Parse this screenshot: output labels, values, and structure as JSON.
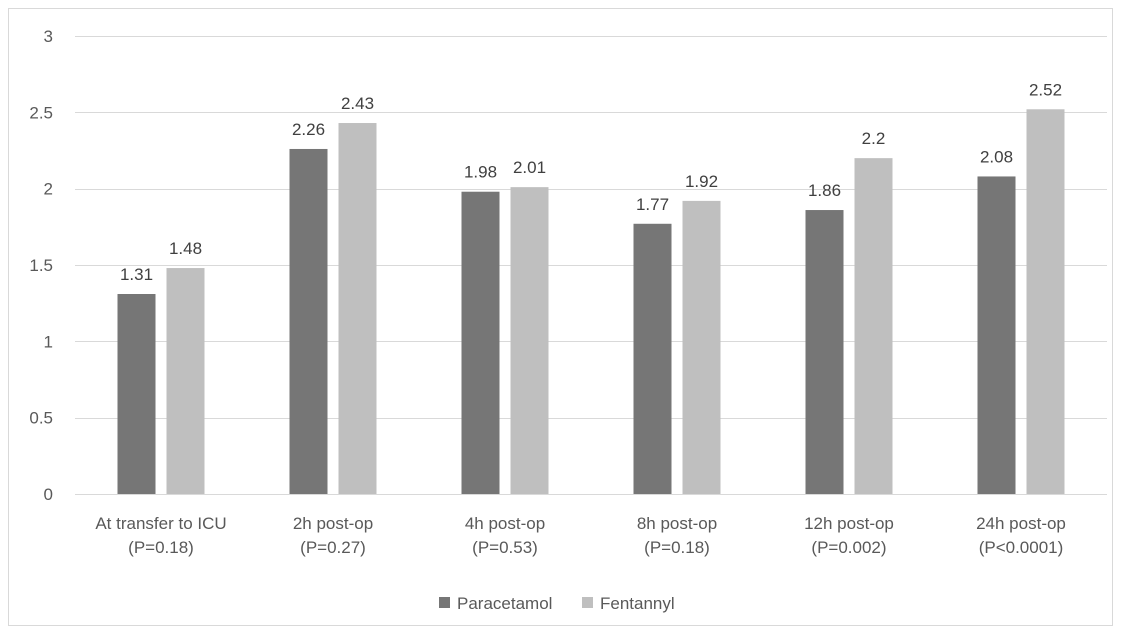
{
  "chart_data": {
    "type": "bar",
    "title": "",
    "xlabel": "",
    "ylabel": "",
    "ylim": [
      0,
      3
    ],
    "y_ticks": [
      "0",
      "0.5",
      "1",
      "1.5",
      "2",
      "2.5",
      "3"
    ],
    "y_tick_values": [
      0,
      0.5,
      1,
      1.5,
      2,
      2.5,
      3
    ],
    "grid": true,
    "legend_position": "bottom",
    "categories": [
      [
        "At transfer to ICU",
        "(P=0.18)"
      ],
      [
        "2h post-op",
        "(P=0.27)"
      ],
      [
        "4h post-op",
        "(P=0.53)"
      ],
      [
        "8h post-op",
        "(P=0.18)"
      ],
      [
        "12h post-op",
        "(P=0.002)"
      ],
      [
        "24h post-op",
        "(P<0.0001)"
      ]
    ],
    "series": [
      {
        "name": "Paracetamol",
        "color": "#767676",
        "values": [
          1.31,
          2.26,
          1.98,
          1.77,
          1.86,
          2.08
        ],
        "labels": [
          "1.31",
          "2.26",
          "1.98",
          "1.77",
          "1.86",
          "2.08"
        ]
      },
      {
        "name": "Fentannyl",
        "color": "#bfbfbf",
        "values": [
          1.48,
          2.43,
          2.01,
          1.92,
          2.2,
          2.52
        ],
        "labels": [
          "1.48",
          "2.43",
          "2.01",
          "1.92",
          "2.2",
          "2.52"
        ]
      }
    ]
  }
}
